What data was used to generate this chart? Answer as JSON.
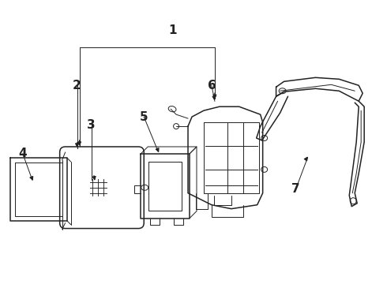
{
  "bg_color": "#ffffff",
  "line_color": "#222222",
  "figsize": [
    4.9,
    3.6
  ],
  "dpi": 100,
  "labels": [
    "1",
    "2",
    "3",
    "4",
    "5",
    "6",
    "7"
  ],
  "label_positions_x": [
    218,
    97,
    115,
    28,
    182,
    268,
    375
  ],
  "label_positions_y": [
    38,
    108,
    158,
    195,
    148,
    108,
    240
  ],
  "fontsize": 11
}
